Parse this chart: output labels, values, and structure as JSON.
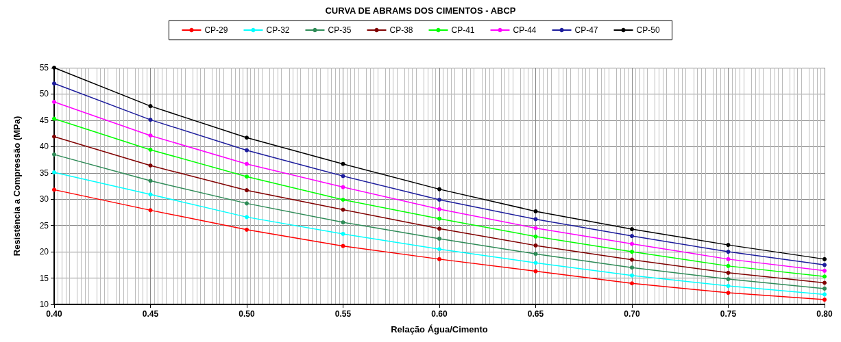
{
  "chart_data": {
    "type": "line",
    "title": "CURVA DE ABRAMS DOS CIMENTOS - ABCP",
    "xlabel": "Relação Água/Cimento",
    "ylabel": "Resistência a Compressão (MPa)",
    "x": [
      0.4,
      0.45,
      0.5,
      0.55,
      0.6,
      0.65,
      0.7,
      0.75,
      0.8
    ],
    "series": [
      {
        "name": "CP-29",
        "color": "#ff0000",
        "values": [
          31.8,
          27.9,
          24.2,
          21.1,
          18.6,
          16.3,
          14.0,
          12.2,
          10.9
        ]
      },
      {
        "name": "CP-32",
        "color": "#00ffff",
        "values": [
          35.1,
          30.9,
          26.6,
          23.4,
          20.5,
          17.9,
          15.5,
          13.5,
          11.9
        ]
      },
      {
        "name": "CP-35",
        "color": "#2e8b57",
        "values": [
          38.5,
          33.5,
          29.2,
          25.6,
          22.5,
          19.6,
          17.0,
          14.8,
          13.0
        ]
      },
      {
        "name": "CP-38",
        "color": "#800000",
        "values": [
          41.9,
          36.4,
          31.7,
          28.0,
          24.4,
          21.2,
          18.5,
          16.0,
          14.1
        ]
      },
      {
        "name": "CP-41",
        "color": "#00ff00",
        "values": [
          45.3,
          39.4,
          34.3,
          29.9,
          26.3,
          22.9,
          20.0,
          17.3,
          15.3
        ]
      },
      {
        "name": "CP-44",
        "color": "#ff00ff",
        "values": [
          48.5,
          42.1,
          36.7,
          32.3,
          28.1,
          24.5,
          21.5,
          18.6,
          16.4
        ]
      },
      {
        "name": "CP-47",
        "color": "#1c1c9c",
        "values": [
          52.0,
          45.1,
          39.3,
          34.4,
          29.9,
          26.2,
          23.0,
          20.0,
          17.5
        ]
      },
      {
        "name": "CP-50",
        "color": "#000000",
        "values": [
          55.0,
          47.7,
          41.7,
          36.7,
          31.9,
          27.7,
          24.3,
          21.3,
          18.6
        ]
      }
    ],
    "xlim": [
      0.4,
      0.8
    ],
    "xticks": [
      {
        "value": 0.4,
        "label": "0.40"
      },
      {
        "value": 0.45,
        "label": "0.45"
      },
      {
        "value": 0.5,
        "label": "0.50"
      },
      {
        "value": 0.55,
        "label": "0.55"
      },
      {
        "value": 0.6,
        "label": "0.60"
      },
      {
        "value": 0.65,
        "label": "0.65"
      },
      {
        "value": 0.7,
        "label": "0.70"
      },
      {
        "value": 0.75,
        "label": "0.75"
      },
      {
        "value": 0.8,
        "label": "0.80"
      }
    ],
    "ylim": [
      10,
      55
    ],
    "yticks": [
      10,
      15,
      20,
      25,
      30,
      35,
      40,
      45,
      50,
      55
    ],
    "grid": true,
    "legend": "top",
    "marker": "circle",
    "line_style": "solid"
  }
}
